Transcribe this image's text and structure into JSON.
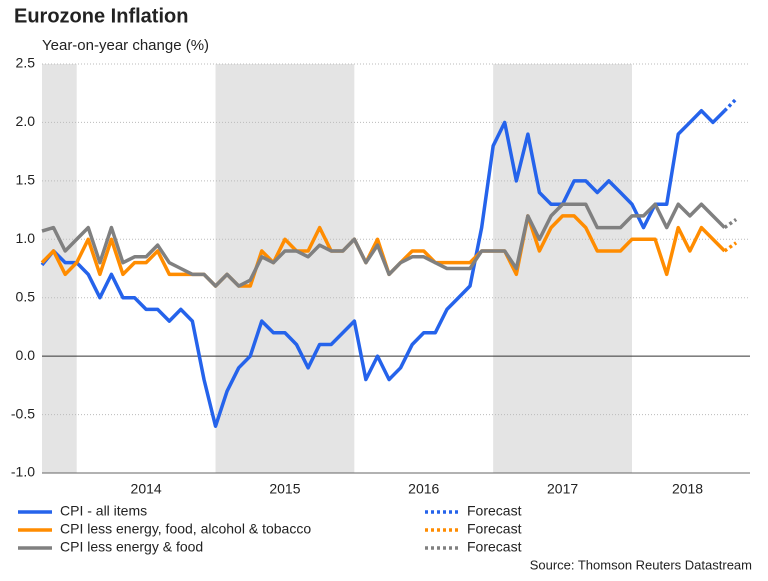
{
  "chart_data": {
    "type": "line",
    "title": "Eurozone Inflation",
    "subtitle": "Year-on-year change (%)",
    "source": "Source: Thomson Reuters Datastream",
    "x": [
      2013.75,
      2013.833,
      2013.917,
      2014,
      2014.083,
      2014.167,
      2014.25,
      2014.333,
      2014.417,
      2014.5,
      2014.583,
      2014.667,
      2014.75,
      2014.833,
      2014.917,
      2015,
      2015.083,
      2015.167,
      2015.25,
      2015.333,
      2015.417,
      2015.5,
      2015.583,
      2015.667,
      2015.75,
      2015.833,
      2015.917,
      2016,
      2016.083,
      2016.167,
      2016.25,
      2016.333,
      2016.417,
      2016.5,
      2016.583,
      2016.667,
      2016.75,
      2016.833,
      2016.917,
      2017,
      2017.083,
      2017.167,
      2017.25,
      2017.333,
      2017.417,
      2017.5,
      2017.583,
      2017.667,
      2017.75,
      2017.833,
      2017.917,
      2018,
      2018.083,
      2018.167,
      2018.25,
      2018.333,
      2018.417,
      2018.5,
      2018.583,
      2018.667,
      2018.75
    ],
    "series": [
      {
        "name": "CPI - all items",
        "color": "#2563eb",
        "style": "solid",
        "values": [
          0.78,
          0.9,
          0.8,
          0.8,
          0.7,
          0.5,
          0.7,
          0.5,
          0.5,
          0.4,
          0.4,
          0.3,
          0.4,
          0.3,
          -0.2,
          -0.6,
          -0.3,
          -0.1,
          0.0,
          0.3,
          0.2,
          0.2,
          0.1,
          -0.1,
          0.1,
          0.1,
          0.2,
          0.3,
          -0.2,
          0.0,
          -0.2,
          -0.1,
          0.1,
          0.2,
          0.2,
          0.4,
          0.5,
          0.6,
          1.1,
          1.8,
          2.0,
          1.5,
          1.9,
          1.4,
          1.3,
          1.3,
          1.5,
          1.5,
          1.4,
          1.5,
          1.4,
          1.3,
          1.1,
          1.3,
          1.3,
          1.9,
          2.0,
          2.1,
          2.0,
          2.1,
          null
        ]
      },
      {
        "name": "CPI less energy, food, alcohol & tobacco",
        "color": "#ff8c00",
        "style": "solid",
        "values": [
          0.8,
          0.9,
          0.7,
          0.8,
          1.0,
          0.7,
          1.0,
          0.7,
          0.8,
          0.8,
          0.9,
          0.7,
          0.7,
          0.7,
          0.7,
          0.6,
          0.7,
          0.6,
          0.6,
          0.9,
          0.8,
          1.0,
          0.9,
          0.9,
          1.1,
          0.9,
          0.9,
          1.0,
          0.8,
          1.0,
          0.7,
          0.8,
          0.9,
          0.9,
          0.8,
          0.8,
          0.8,
          0.8,
          0.9,
          0.9,
          0.9,
          0.7,
          1.2,
          0.9,
          1.1,
          1.2,
          1.2,
          1.1,
          0.9,
          0.9,
          0.9,
          1.0,
          1.0,
          1.0,
          0.7,
          1.1,
          0.9,
          1.1,
          1.0,
          0.9,
          null
        ]
      },
      {
        "name": "CPI less energy & food",
        "color": "#808080",
        "style": "solid",
        "values": [
          1.07,
          1.1,
          0.9,
          1.0,
          1.1,
          0.8,
          1.1,
          0.8,
          0.85,
          0.85,
          0.95,
          0.8,
          0.75,
          0.7,
          0.7,
          0.6,
          0.7,
          0.6,
          0.65,
          0.85,
          0.8,
          0.9,
          0.9,
          0.85,
          0.95,
          0.9,
          0.9,
          1.0,
          0.8,
          0.95,
          0.7,
          0.8,
          0.85,
          0.85,
          0.8,
          0.75,
          0.75,
          0.75,
          0.9,
          0.9,
          0.9,
          0.75,
          1.2,
          1.0,
          1.2,
          1.3,
          1.3,
          1.3,
          1.1,
          1.1,
          1.1,
          1.2,
          1.2,
          1.3,
          1.1,
          1.3,
          1.2,
          1.3,
          1.2,
          1.1,
          null
        ]
      },
      {
        "name": "Forecast",
        "color": "#2563eb",
        "style": "dotted",
        "values": [
          null,
          null,
          null,
          null,
          null,
          null,
          null,
          null,
          null,
          null,
          null,
          null,
          null,
          null,
          null,
          null,
          null,
          null,
          null,
          null,
          null,
          null,
          null,
          null,
          null,
          null,
          null,
          null,
          null,
          null,
          null,
          null,
          null,
          null,
          null,
          null,
          null,
          null,
          null,
          null,
          null,
          null,
          null,
          null,
          null,
          null,
          null,
          null,
          null,
          null,
          null,
          null,
          null,
          null,
          null,
          null,
          null,
          null,
          null,
          2.1,
          2.2
        ]
      },
      {
        "name": "Forecast",
        "color": "#ff8c00",
        "style": "dotted",
        "values": [
          null,
          null,
          null,
          null,
          null,
          null,
          null,
          null,
          null,
          null,
          null,
          null,
          null,
          null,
          null,
          null,
          null,
          null,
          null,
          null,
          null,
          null,
          null,
          null,
          null,
          null,
          null,
          null,
          null,
          null,
          null,
          null,
          null,
          null,
          null,
          null,
          null,
          null,
          null,
          null,
          null,
          null,
          null,
          null,
          null,
          null,
          null,
          null,
          null,
          null,
          null,
          null,
          null,
          null,
          null,
          null,
          null,
          null,
          null,
          0.9,
          0.97
        ]
      },
      {
        "name": "Forecast",
        "color": "#808080",
        "style": "dotted",
        "values": [
          null,
          null,
          null,
          null,
          null,
          null,
          null,
          null,
          null,
          null,
          null,
          null,
          null,
          null,
          null,
          null,
          null,
          null,
          null,
          null,
          null,
          null,
          null,
          null,
          null,
          null,
          null,
          null,
          null,
          null,
          null,
          null,
          null,
          null,
          null,
          null,
          null,
          null,
          null,
          null,
          null,
          null,
          null,
          null,
          null,
          null,
          null,
          null,
          null,
          null,
          null,
          null,
          null,
          null,
          null,
          null,
          null,
          null,
          null,
          1.1,
          1.17
        ]
      }
    ],
    "xlim": [
      2013.75,
      2018.85
    ],
    "xticks": [
      {
        "value": 2014.5,
        "label": "2014"
      },
      {
        "value": 2015.5,
        "label": "2015"
      },
      {
        "value": 2016.5,
        "label": "2016"
      },
      {
        "value": 2017.5,
        "label": "2017"
      },
      {
        "value": 2018.4,
        "label": "2018"
      }
    ],
    "shaded_spans": [
      [
        2013.75,
        2014
      ],
      [
        2015,
        2016
      ],
      [
        2017,
        2018
      ]
    ],
    "ylim": [
      -1,
      2.5
    ],
    "yticks": [
      2.5,
      {
        "value": 2,
        "label": "2.0"
      },
      1.5,
      {
        "value": 1,
        "label": "1.0"
      },
      0.5,
      {
        "value": 0,
        "label": "0.0"
      },
      -0.5,
      {
        "value": -1,
        "label": "-1.0"
      }
    ],
    "grid": true,
    "zero_line": true
  }
}
